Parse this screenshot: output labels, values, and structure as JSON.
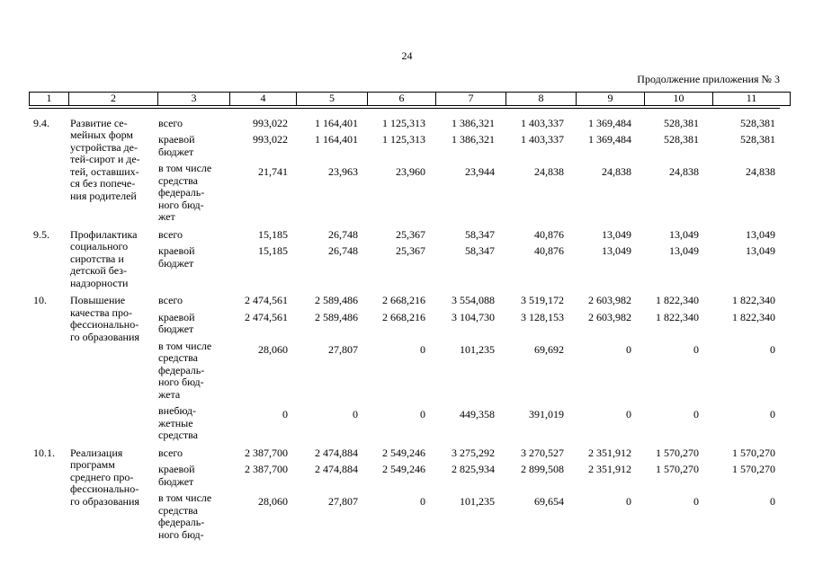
{
  "page": {
    "number": "24",
    "continuation": "Продолжение приложения № 3"
  },
  "table": {
    "column_numbers": [
      "1",
      "2",
      "3",
      "4",
      "5",
      "6",
      "7",
      "8",
      "9",
      "10",
      "11"
    ],
    "rows": [
      {
        "num": "9.4.",
        "title_lines": [
          "Развитие се-",
          "мейных форм",
          "устройства де-",
          "тей-сирот и де-",
          "тей, оставших-",
          "ся без попече-",
          "ния родителей"
        ],
        "entries": [
          {
            "label_lines": [
              "всего"
            ],
            "values": [
              "993,022",
              "1 164,401",
              "1 125,313",
              "1 386,321",
              "1 403,337",
              "1 369,484",
              "528,381",
              "528,381"
            ]
          },
          {
            "label_lines": [
              "краевой",
              "бюджет"
            ],
            "values": [
              "993,022",
              "1 164,401",
              "1 125,313",
              "1 386,321",
              "1 403,337",
              "1 369,484",
              "528,381",
              "528,381"
            ]
          },
          {
            "label_lines": [
              "в том числе",
              "средства",
              "федераль-",
              "ного бюд-",
              "жет"
            ],
            "values": [
              "21,741",
              "23,963",
              "23,960",
              "23,944",
              "24,838",
              "24,838",
              "24,838",
              "24,838"
            ]
          }
        ]
      },
      {
        "num": "9.5.",
        "title_lines": [
          "Профилактика",
          "социального",
          "сиротства и",
          "детской без-",
          "надзорности"
        ],
        "entries": [
          {
            "label_lines": [
              "всего"
            ],
            "values": [
              "15,185",
              "26,748",
              "25,367",
              "58,347",
              "40,876",
              "13,049",
              "13,049",
              "13,049"
            ]
          },
          {
            "label_lines": [
              "краевой",
              "бюджет"
            ],
            "values": [
              "15,185",
              "26,748",
              "25,367",
              "58,347",
              "40,876",
              "13,049",
              "13,049",
              "13,049"
            ]
          }
        ]
      },
      {
        "num": "10.",
        "title_lines": [
          "Повышение",
          "качества про-",
          "фессионально-",
          "го образования"
        ],
        "entries": [
          {
            "label_lines": [
              "всего"
            ],
            "values": [
              "2 474,561",
              "2 589,486",
              "2 668,216",
              "3 554,088",
              "3 519,172",
              "2 603,982",
              "1 822,340",
              "1 822,340"
            ]
          },
          {
            "label_lines": [
              "краевой",
              "бюджет"
            ],
            "values": [
              "2 474,561",
              "2 589,486",
              "2 668,216",
              "3 104,730",
              "3 128,153",
              "2 603,982",
              "1 822,340",
              "1 822,340"
            ]
          },
          {
            "label_lines": [
              "в том числе",
              "средства",
              "федераль-",
              "ного бюд-",
              "жета"
            ],
            "values": [
              "28,060",
              "27,807",
              "0",
              "101,235",
              "69,692",
              "0",
              "0",
              "0"
            ]
          },
          {
            "label_lines": [
              "внебюд-",
              "жетные",
              "средства"
            ],
            "values": [
              "0",
              "0",
              "0",
              "449,358",
              "391,019",
              "0",
              "0",
              "0"
            ]
          }
        ]
      },
      {
        "num": "10.1.",
        "title_lines": [
          "Реализация",
          "программ",
          "среднего про-",
          "фессионально-",
          "го образования"
        ],
        "entries": [
          {
            "label_lines": [
              "всего"
            ],
            "values": [
              "2 387,700",
              "2 474,884",
              "2 549,246",
              "3 275,292",
              "3 270,527",
              "2 351,912",
              "1 570,270",
              "1 570,270"
            ]
          },
          {
            "label_lines": [
              "краевой",
              "бюджет"
            ],
            "values": [
              "2 387,700",
              "2 474,884",
              "2 549,246",
              "2 825,934",
              "2 899,508",
              "2 351,912",
              "1 570,270",
              "1 570,270"
            ]
          },
          {
            "label_lines": [
              "в том числе",
              "средства",
              "федераль-",
              "ного бюд-"
            ],
            "values": [
              "28,060",
              "27,807",
              "0",
              "101,235",
              "69,654",
              "0",
              "0",
              "0"
            ]
          }
        ]
      }
    ]
  }
}
